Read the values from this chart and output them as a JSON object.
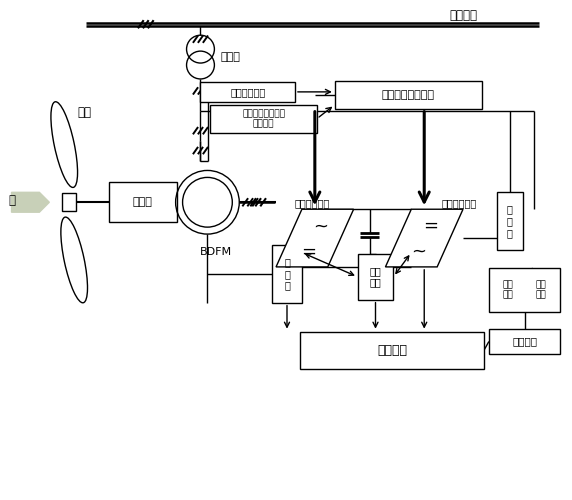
{
  "bg_color": "#ffffff",
  "lc": "#000000",
  "lw": 1.0,
  "labels": {
    "grid": "电网系统",
    "transformer": "变压器",
    "speed_input": "电机转速输入",
    "voltage_input": "电机绕组电压电流\n参数输入",
    "vf_system": "变速恒频运行系统",
    "motor_conv": "电机侧变流器",
    "grid_conv": "电网侧变流器",
    "volt_detect": "电压\n检测",
    "speed_sensor": "速\n变\n器",
    "filter": "滤\n波\n器",
    "control": "控制系统",
    "supercond": "超导\n线圈",
    "cooling": "制冷\n系统",
    "protection": "保护系统",
    "blade": "叶片",
    "wind": "风",
    "gearbox": "增速箱",
    "bdfm": "BDFM"
  },
  "wind_color": "#c8d0b8"
}
